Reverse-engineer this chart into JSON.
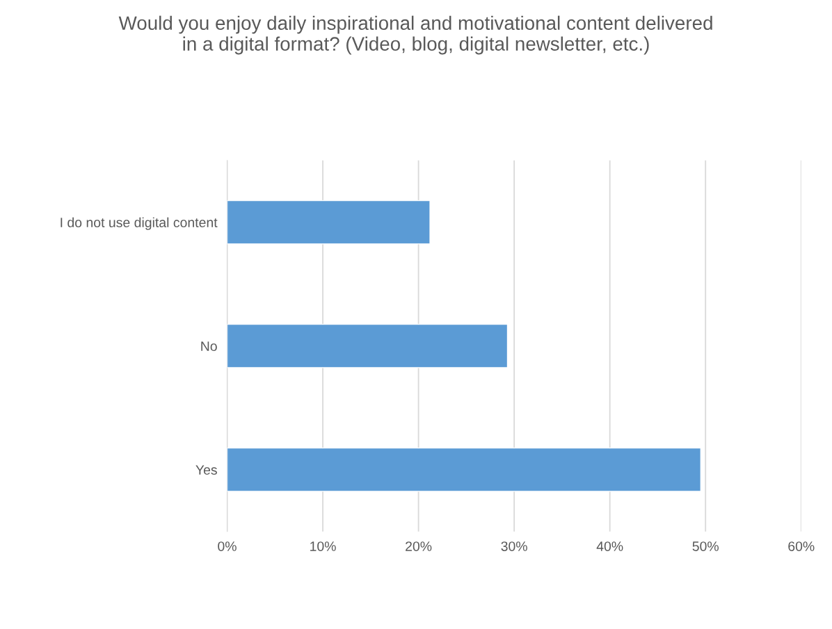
{
  "chart_data": {
    "type": "bar",
    "orientation": "horizontal",
    "title": "Would you enjoy daily inspirational and motivational content delivered\nin a digital format? (Video, blog, digital newsletter, etc.)",
    "categories": [
      "I do not use digital content",
      "No",
      "Yes"
    ],
    "values": [
      21.2,
      29.3,
      49.5
    ],
    "color": "#5b9bd5",
    "xlim": [
      0,
      60
    ],
    "xticks": [
      {
        "value": 0,
        "label": "0%"
      },
      {
        "value": 10,
        "label": "10%"
      },
      {
        "value": 20,
        "label": "20%"
      },
      {
        "value": 30,
        "label": "30%"
      },
      {
        "value": 40,
        "label": "40%"
      },
      {
        "value": 50,
        "label": "50%"
      },
      {
        "value": 60,
        "label": "60%"
      }
    ],
    "grid": "x"
  }
}
